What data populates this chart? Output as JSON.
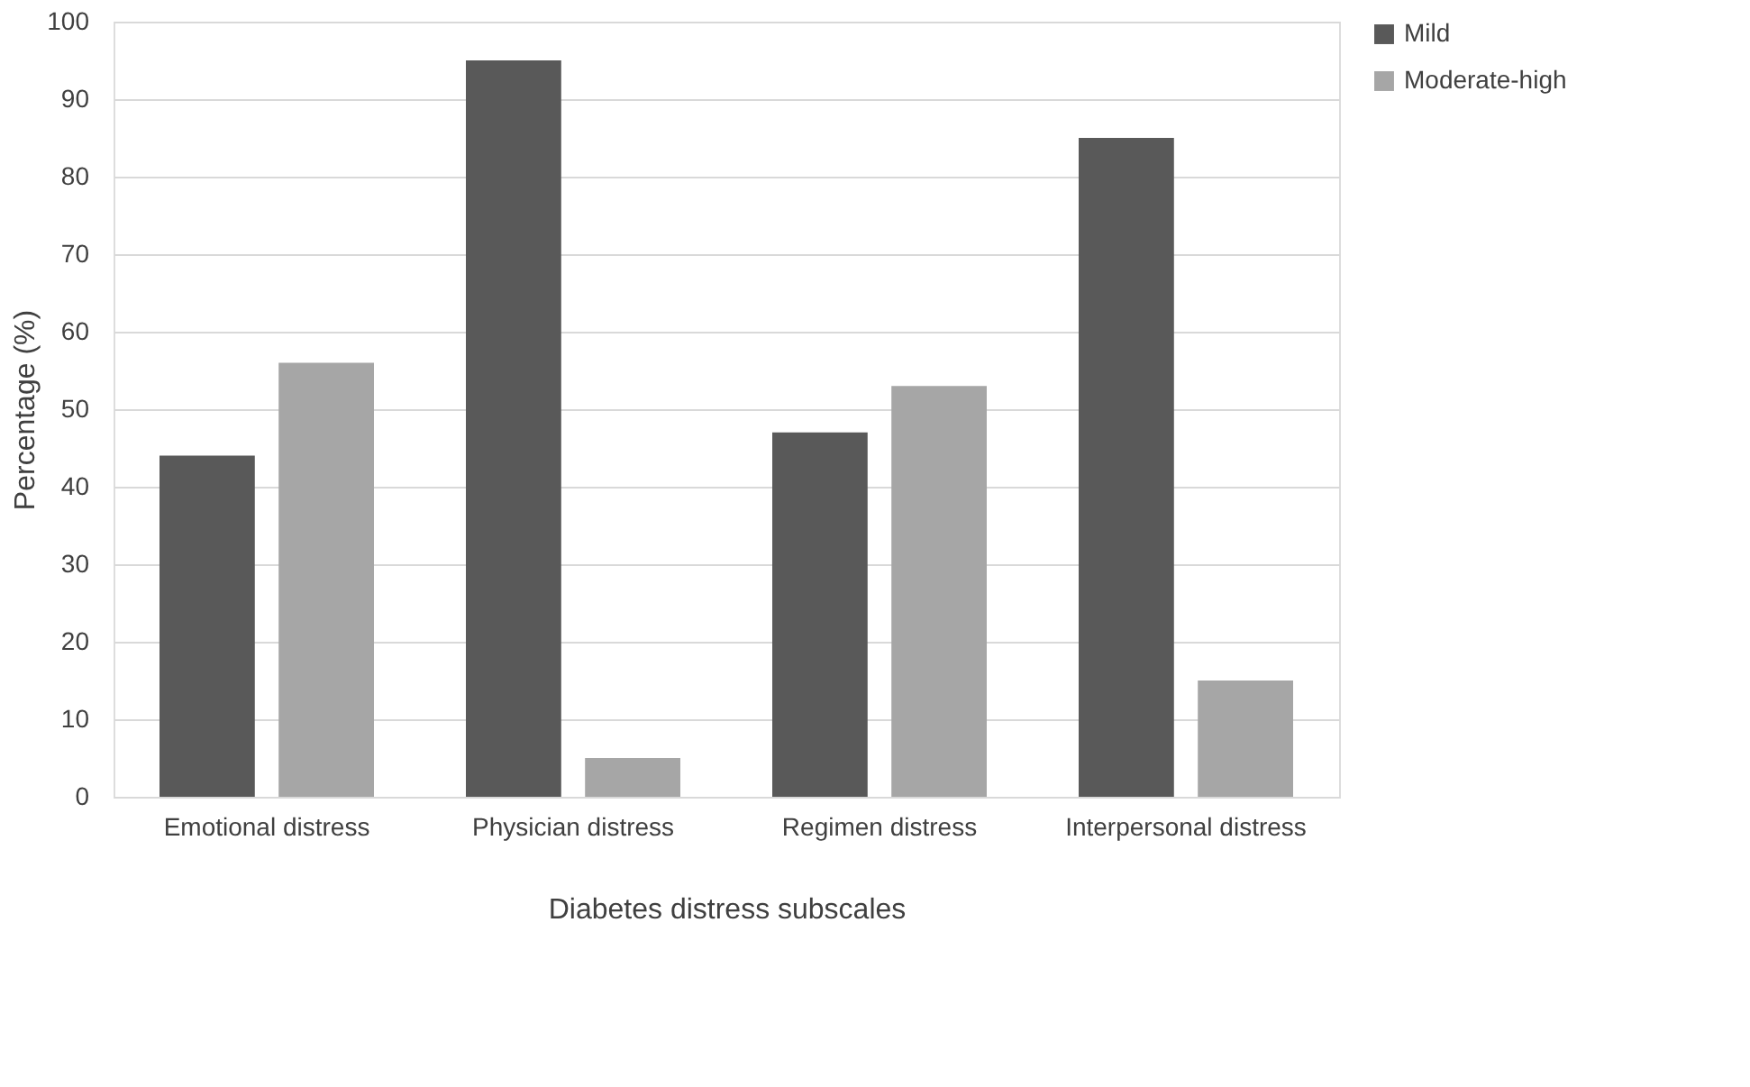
{
  "chart_data": {
    "type": "bar",
    "xlabel": "Diabetes distress subscales",
    "ylabel": "Percentage (%)",
    "categories": [
      "Emotional distress",
      "Physician distress",
      "Regimen distress",
      "Interpersonal distress"
    ],
    "series": [
      {
        "name": "Mild",
        "color": "#595959",
        "values": [
          44,
          95,
          47,
          85
        ]
      },
      {
        "name": "Moderate-high",
        "color": "#a6a6a6",
        "values": [
          56,
          5,
          53,
          15
        ]
      }
    ],
    "ylim": [
      0,
      100
    ],
    "yticks": [
      0,
      10,
      20,
      30,
      40,
      50,
      60,
      70,
      80,
      90,
      100
    ],
    "grid": "y",
    "legend": "right"
  }
}
